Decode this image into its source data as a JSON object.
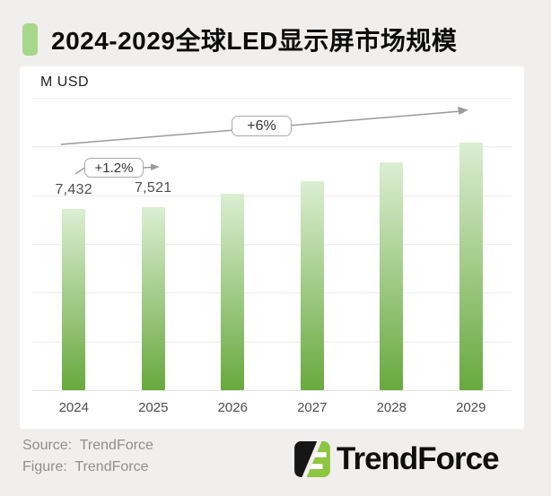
{
  "page": {
    "background_color": "#f0efed"
  },
  "header": {
    "title": "2024-2029全球LED显示屏市场规模",
    "marker_color": "#a7d78b"
  },
  "chart": {
    "unit_label": "M USD"
  },
  "chart_data": {
    "type": "bar",
    "title": "2024-2029全球LED显示屏市场规模",
    "unit": "M USD",
    "categories": [
      "2024",
      "2025",
      "2026",
      "2027",
      "2028",
      "2029"
    ],
    "values": [
      7432,
      7521,
      8050,
      8570,
      9350,
      10150
    ],
    "data_labels": [
      "7,432",
      "7,521",
      "",
      "",
      "",
      ""
    ],
    "ylim": [
      0,
      12000
    ],
    "gridline_interval": 2000,
    "grid": true,
    "bar_color_top": "#dbeed2",
    "bar_color_bottom": "#68a93e",
    "annotations": [
      {
        "text": "+1.2%",
        "span": "2024 to 2025"
      },
      {
        "text": "+6%",
        "span": "2024 to 2029"
      }
    ]
  },
  "footer": {
    "source_line": "Source:  TrendForce",
    "figure_line": "Figure:  TrendForce",
    "logo_text": "TrendForce",
    "logo_green": "#8dc63f",
    "logo_black": "#161616"
  }
}
